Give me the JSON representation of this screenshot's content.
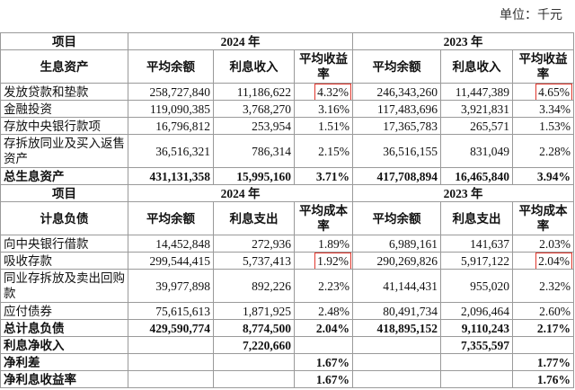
{
  "unit": "单位：千元",
  "sections": [
    {
      "years": [
        "项目",
        "2024 年",
        "2023 年"
      ],
      "columns": [
        "生息资产",
        "平均余额",
        "利息收入",
        "平均收益率",
        "平均余额",
        "利息收入",
        "平均收益率"
      ],
      "rows": [
        [
          "发放贷款和垫款",
          "258,727,840",
          "11,186,622",
          "4.32%",
          "246,343,260",
          "11,447,389",
          "4.65%"
        ],
        [
          "金融投资",
          "119,090,385",
          "3,768,270",
          "3.16%",
          "117,483,696",
          "3,921,831",
          "3.34%"
        ],
        [
          "存放中央银行款项",
          "16,796,812",
          "253,954",
          "1.51%",
          "17,365,783",
          "265,571",
          "1.53%"
        ],
        [
          "存拆放同业及买入返售资产",
          "36,516,321",
          "786,314",
          "2.15%",
          "36,516,155",
          "831,049",
          "2.28%"
        ],
        [
          "总生息资产",
          "431,131,358",
          "15,995,160",
          "3.71%",
          "417,708,894",
          "16,465,840",
          "3.94%"
        ]
      ]
    },
    {
      "years": [
        "项目",
        "2024 年",
        "2023 年"
      ],
      "columns": [
        "计息负债",
        "平均余额",
        "利息支出",
        "平均成本率",
        "平均余额",
        "利息支出",
        "平均成本率"
      ],
      "rows": [
        [
          "向中央银行借款",
          "14,452,848",
          "272,936",
          "1.89%",
          "6,989,161",
          "141,637",
          "2.03%"
        ],
        [
          "吸收存款",
          "299,544,415",
          "5,737,413",
          "1.92%",
          "290,269,826",
          "5,917,122",
          "2.04%"
        ],
        [
          "同业存拆放及卖出回购款",
          "39,977,898",
          "892,226",
          "2.23%",
          "41,144,431",
          "955,020",
          "2.32%"
        ],
        [
          "应付债券",
          "75,615,613",
          "1,871,925",
          "2.48%",
          "80,491,734",
          "2,096,464",
          "2.60%"
        ],
        [
          "总计息负债",
          "429,590,774",
          "8,774,500",
          "2.04%",
          "418,895,152",
          "9,110,243",
          "2.17%"
        ],
        [
          "利息净收入",
          null,
          "7,220,660",
          null,
          null,
          "7,355,597",
          null
        ],
        [
          "净利差",
          null,
          null,
          "1.67%",
          null,
          null,
          "1.77%"
        ],
        [
          "净利息收益率",
          null,
          null,
          "1.67%",
          null,
          null,
          "1.76%"
        ]
      ]
    }
  ]
}
